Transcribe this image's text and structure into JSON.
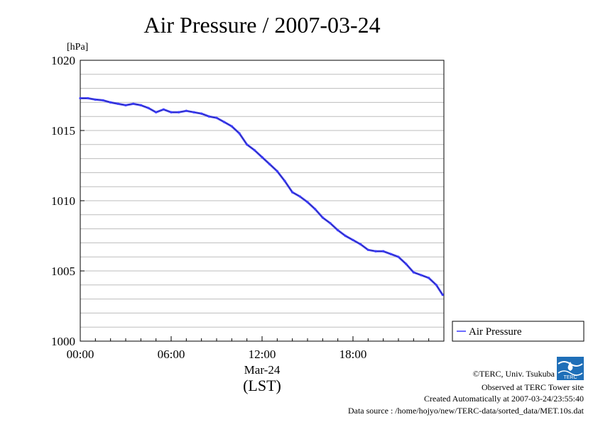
{
  "chart_data": {
    "type": "line",
    "title": "Air Pressure / 2007-03-24",
    "ylabel": "[hPa]",
    "xlabel": "(LST)",
    "x_date_label": "Mar-24",
    "ylim": [
      1000,
      1020
    ],
    "yticks": [
      1000,
      1005,
      1010,
      1015,
      1020
    ],
    "xlim": [
      "00:00",
      "24:00"
    ],
    "xticks": [
      "00:00",
      "06:00",
      "12:00",
      "18:00"
    ],
    "grid": true,
    "legend": {
      "position": "right",
      "entries": [
        "Air Pressure"
      ]
    },
    "series": [
      {
        "name": "Air Pressure",
        "color": "#3a3aff",
        "x": [
          "00:00",
          "00:30",
          "01:00",
          "01:30",
          "02:00",
          "02:30",
          "03:00",
          "03:30",
          "04:00",
          "04:30",
          "05:00",
          "05:30",
          "06:00",
          "06:30",
          "07:00",
          "07:30",
          "08:00",
          "08:30",
          "09:00",
          "09:30",
          "10:00",
          "10:30",
          "11:00",
          "11:30",
          "12:00",
          "12:30",
          "13:00",
          "13:30",
          "14:00",
          "14:30",
          "15:00",
          "15:30",
          "16:00",
          "16:30",
          "17:00",
          "17:30",
          "18:00",
          "18:30",
          "19:00",
          "19:30",
          "20:00",
          "20:30",
          "21:00",
          "21:30",
          "22:00",
          "22:30",
          "23:00",
          "23:30",
          "23:55"
        ],
        "values": [
          1017.3,
          1017.3,
          1017.2,
          1017.15,
          1017.0,
          1016.9,
          1016.8,
          1016.9,
          1016.8,
          1016.6,
          1016.3,
          1016.5,
          1016.3,
          1016.3,
          1016.4,
          1016.3,
          1016.2,
          1016.0,
          1015.9,
          1015.6,
          1015.3,
          1014.8,
          1014.0,
          1013.6,
          1013.1,
          1012.6,
          1012.1,
          1011.4,
          1010.6,
          1010.3,
          1009.9,
          1009.4,
          1008.8,
          1008.4,
          1007.9,
          1007.5,
          1007.2,
          1006.9,
          1006.5,
          1006.4,
          1006.4,
          1006.2,
          1006.0,
          1005.5,
          1004.9,
          1004.7,
          1004.5,
          1004.0,
          1003.3
        ]
      }
    ]
  },
  "credits": {
    "copyright": "©TERC, Univ. Tsukuba",
    "observed": "Observed at TERC Tower site",
    "created": "Created Automatically at 2007-03-24/23:55:40",
    "source": "Data source : /home/hojyo/new/TERC-data/sorted_data/MET.10s.dat"
  },
  "logo": {
    "text": "TERC",
    "color": "#1f6fb8"
  }
}
